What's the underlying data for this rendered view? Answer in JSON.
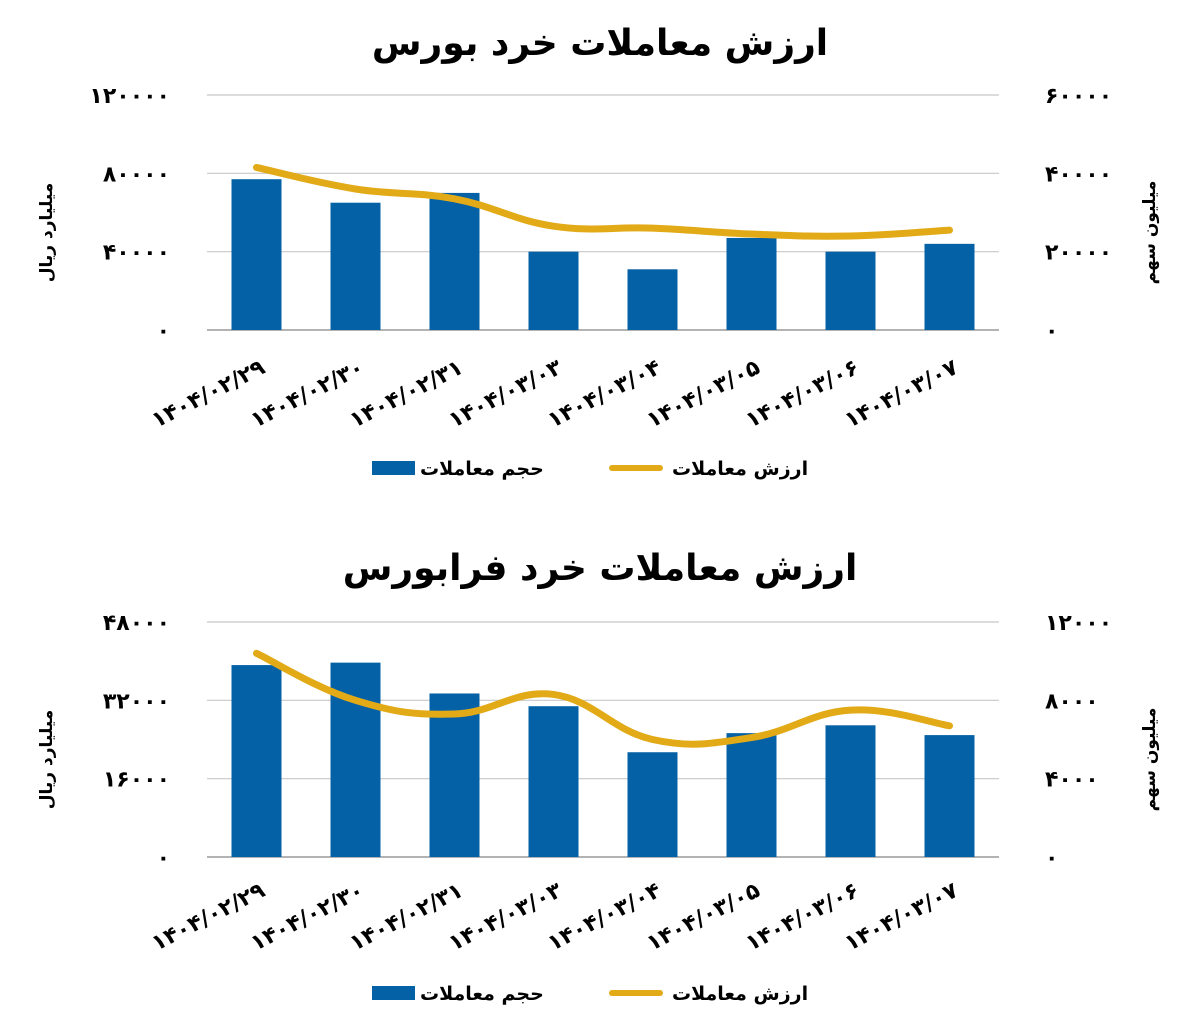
{
  "colors": {
    "bar": "#0561A6",
    "line": "#E2AA16"
  },
  "chart_data": [
    {
      "type": "bar",
      "title": "ارزش معاملات خرد بورس",
      "categories": [
        "۱۴۰۴/۰۲/۲۹",
        "۱۴۰۴/۰۲/۳۰",
        "۱۴۰۴/۰۲/۳۱",
        "۱۴۰۴/۰۳/۰۳",
        "۱۴۰۴/۰۳/۰۴",
        "۱۴۰۴/۰۳/۰۵",
        "۱۴۰۴/۰۳/۰۶",
        "۱۴۰۴/۰۳/۰۷"
      ],
      "ylabel_left": "میلیارد ریال",
      "ylabel_right": "میلیون سهم",
      "ylim_left": [
        0,
        120000
      ],
      "ylim_right": [
        0,
        60000
      ],
      "yticks_left": [
        0,
        40000,
        80000,
        120000
      ],
      "yticks_right": [
        0,
        20000,
        40000,
        60000
      ],
      "yticklabels_left": [
        "۰",
        "۴۰۰۰۰",
        "۸۰۰۰۰",
        "۱۲۰۰۰۰"
      ],
      "yticklabels_right": [
        "۰",
        "۲۰۰۰۰",
        "۴۰۰۰۰",
        "۶۰۰۰۰"
      ],
      "grid": true,
      "legend_position": "bottom",
      "series": [
        {
          "name": "حجم معاملات",
          "type": "bar",
          "axis": "left",
          "values": [
            77000,
            65000,
            70000,
            40000,
            31000,
            47000,
            40000,
            44000
          ]
        },
        {
          "name": "ارزش معاملات",
          "type": "line",
          "axis": "right",
          "values": [
            41500,
            36000,
            33500,
            26500,
            26000,
            24500,
            24000,
            25500
          ]
        }
      ]
    },
    {
      "type": "bar",
      "title": "ارزش معاملات خرد فرابورس",
      "categories": [
        "۱۴۰۴/۰۲/۲۹",
        "۱۴۰۴/۰۲/۳۰",
        "۱۴۰۴/۰۲/۳۱",
        "۱۴۰۴/۰۳/۰۳",
        "۱۴۰۴/۰۳/۰۴",
        "۱۴۰۴/۰۳/۰۵",
        "۱۴۰۴/۰۳/۰۶",
        "۱۴۰۴/۰۳/۰۷"
      ],
      "ylabel_left": "میلیارد ریال",
      "ylabel_right": "میلیون سهم",
      "ylim_left": [
        0,
        48000
      ],
      "ylim_right": [
        0,
        12000
      ],
      "yticks_left": [
        0,
        16000,
        32000,
        48000
      ],
      "yticks_right": [
        0,
        4000,
        8000,
        12000
      ],
      "yticklabels_left": [
        "۰",
        "۱۶۰۰۰",
        "۳۲۰۰۰",
        "۴۸۰۰۰"
      ],
      "yticklabels_right": [
        "۰",
        "۴۰۰۰",
        "۸۰۰۰",
        "۱۲۰۰۰"
      ],
      "grid": true,
      "legend_position": "bottom",
      "series": [
        {
          "name": "حجم معاملات",
          "type": "bar",
          "axis": "left",
          "values": [
            39200,
            39700,
            33400,
            30800,
            21400,
            25300,
            26900,
            24900
          ]
        },
        {
          "name": "ارزش معاملات",
          "type": "line",
          "axis": "right",
          "values": [
            10400,
            8000,
            7300,
            8300,
            6000,
            6100,
            7500,
            6700
          ]
        }
      ]
    }
  ]
}
